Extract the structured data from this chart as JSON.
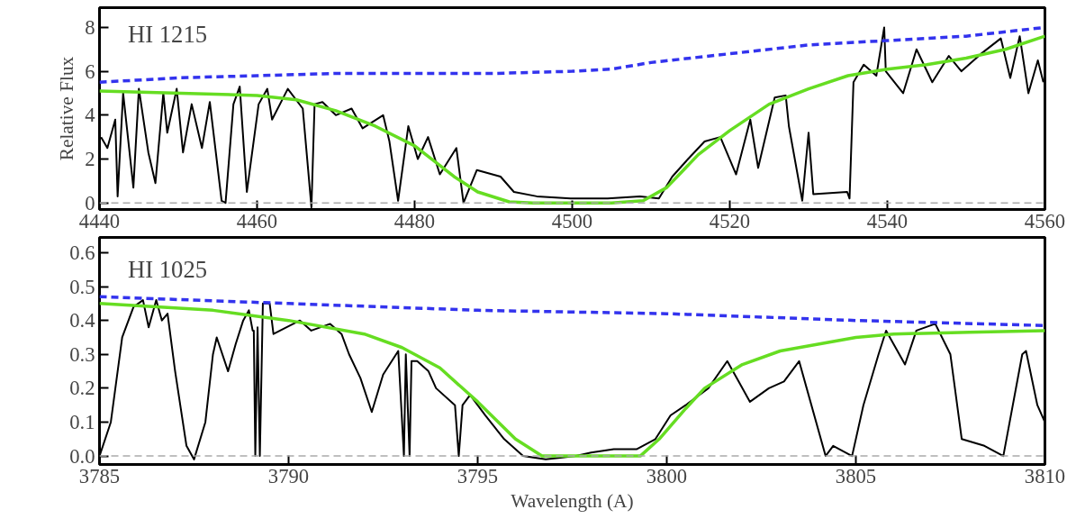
{
  "chart_data": [
    {
      "type": "line",
      "ylabel": "Relative Flux",
      "annotations": [
        "HI 1215"
      ],
      "xlim": [
        4440,
        4560
      ],
      "ylim": [
        -0.3,
        8.9
      ],
      "xticks": [
        4440,
        4460,
        4480,
        4500,
        4520,
        4540,
        4560
      ],
      "yticks": [
        0,
        2,
        4,
        6,
        8
      ],
      "grid": false,
      "ref_lines": [
        {
          "axis": "y",
          "value": 0,
          "color": "#aaaaaa",
          "line_style": "dashed"
        }
      ],
      "series": [
        {
          "color": "#000000",
          "line_style": "solid",
          "x": [
            4440.2,
            4441,
            4442,
            4442.3,
            4443,
            4444.3,
            4445,
            4446.2,
            4447.1,
            4448.1,
            4448.6,
            4449.8,
            4450.6,
            4451.7,
            4453,
            4454,
            4455.5,
            4456,
            4457,
            4457.8,
            4458.7,
            4460.2,
            4461.3,
            4461.9,
            4463.9,
            4465.8,
            4466.9,
            4467.3,
            4468.3,
            4470,
            4472,
            4473.4,
            4476,
            4476.8,
            4477.9,
            4479.2,
            4480.4,
            4481.7,
            4483.2,
            4485.3,
            4486.2,
            4487.9,
            4490.9,
            4492.6,
            4495.5,
            4499.8,
            4504.5,
            4508.6,
            4511,
            4512.7,
            4514.7,
            4516.8,
            4518.8,
            4520.8,
            4522.6,
            4523.6,
            4525.7,
            4527.1,
            4527.5,
            4529.2,
            4530,
            4530.6,
            4534.9,
            4535.2,
            4535.7,
            4537,
            4538.6,
            4539.6,
            4539.8,
            4542,
            4543.7,
            4545.7,
            4547.8,
            4549.4,
            4551.9,
            4554.4,
            4555.6,
            4556.8,
            4557.9,
            4559.1,
            4559.8
          ],
          "values": [
            3.0,
            2.5,
            3.8,
            0.3,
            5.0,
            0.7,
            5.2,
            2.3,
            0.9,
            5.0,
            3.2,
            5.2,
            2.3,
            4.5,
            2.5,
            4.6,
            0.1,
            0.0,
            4.5,
            5.3,
            0.5,
            4.5,
            5.2,
            3.8,
            5.2,
            4.3,
            -0.2,
            4.5,
            4.6,
            4.0,
            4.3,
            3.4,
            4.0,
            2.8,
            0.1,
            3.5,
            2.0,
            3.0,
            1.3,
            2.5,
            0.0,
            1.5,
            1.2,
            0.5,
            0.3,
            0.2,
            0.2,
            0.3,
            0.2,
            1.2,
            2.0,
            2.8,
            3.0,
            1.3,
            3.8,
            1.6,
            4.8,
            4.9,
            3.5,
            0.1,
            3.2,
            0.4,
            0.5,
            0.2,
            5.5,
            6.3,
            5.8,
            8.0,
            6.0,
            5.0,
            7.0,
            5.5,
            6.7,
            6.0,
            6.8,
            7.5,
            5.7,
            7.6,
            5.0,
            6.5,
            5.5
          ]
        },
        {
          "color": "#66dd22",
          "line_style": "solid",
          "x": [
            4440,
            4460,
            4465,
            4470,
            4475,
            4480,
            4485,
            4488,
            4492,
            4495,
            4505,
            4509,
            4512,
            4516,
            4520,
            4525,
            4530,
            4535,
            4540,
            4545,
            4550,
            4555,
            4560
          ],
          "values": [
            5.1,
            4.9,
            4.7,
            4.2,
            3.5,
            2.6,
            1.2,
            0.5,
            0.05,
            0.0,
            0.0,
            0.1,
            0.7,
            2.2,
            3.3,
            4.5,
            5.2,
            5.8,
            6.1,
            6.3,
            6.6,
            7.0,
            7.6
          ]
        },
        {
          "color": "#3333ee",
          "line_style": "dashed",
          "x": [
            4440,
            4450,
            4460,
            4470,
            4480,
            4490,
            4500,
            4505,
            4510,
            4520,
            4530,
            4540,
            4550,
            4560
          ],
          "values": [
            5.5,
            5.7,
            5.8,
            5.9,
            5.9,
            5.9,
            6.0,
            6.1,
            6.4,
            6.8,
            7.2,
            7.4,
            7.6,
            8.0
          ]
        }
      ]
    },
    {
      "type": "line",
      "xlabel": "Wavelength (A)",
      "annotations": [
        "HI 1025"
      ],
      "xlim": [
        3785,
        3810
      ],
      "ylim": [
        -0.025,
        0.645
      ],
      "xticks": [
        3785,
        3790,
        3795,
        3800,
        3805,
        3810
      ],
      "yticks": [
        {
          "value": 0,
          "label": "0.0"
        },
        0.1,
        0.2,
        0.3,
        0.4,
        0.5,
        0.6
      ],
      "grid": false,
      "ref_lines": [
        {
          "axis": "y",
          "value": 0,
          "color": "#aaaaaa",
          "line_style": "dashed"
        }
      ],
      "series": [
        {
          "color": "#000000",
          "line_style": "solid",
          "x": [
            3785.0,
            3785.3,
            3785.6,
            3785.9,
            3786.15,
            3786.3,
            3786.5,
            3786.65,
            3786.8,
            3787.0,
            3787.3,
            3787.5,
            3787.8,
            3788.0,
            3788.1,
            3788.4,
            3788.6,
            3788.8,
            3788.95,
            3789.05,
            3789.08,
            3789.12,
            3789.18,
            3789.24,
            3789.32,
            3789.5,
            3789.6,
            3790.3,
            3790.6,
            3791.1,
            3791.4,
            3791.6,
            3791.9,
            3792.2,
            3792.5,
            3792.9,
            3793.05,
            3793.1,
            3793.2,
            3793.25,
            3793.4,
            3793.7,
            3793.9,
            3794.4,
            3794.5,
            3794.6,
            3794.8,
            3795.2,
            3795.7,
            3796.2,
            3796.8,
            3797.6,
            3798.0,
            3798.6,
            3799.2,
            3799.7,
            3800.1,
            3800.5,
            3801.1,
            3801.6,
            3801.9,
            3802.2,
            3802.7,
            3803.1,
            3803.5,
            3803.7,
            3804.2,
            3804.4,
            3804.9,
            3805.2,
            3805.6,
            3805.8,
            3806.1,
            3806.3,
            3806.6,
            3807.1,
            3807.5,
            3807.8,
            3808.4,
            3808.9,
            3809.4,
            3809.5,
            3809.8,
            3810.0
          ],
          "values": [
            0.0,
            0.1,
            0.35,
            0.44,
            0.46,
            0.38,
            0.46,
            0.4,
            0.42,
            0.25,
            0.03,
            -0.01,
            0.1,
            0.3,
            0.35,
            0.25,
            0.33,
            0.4,
            0.43,
            0.37,
            0.37,
            0.0,
            0.38,
            0.0,
            0.45,
            0.45,
            0.36,
            0.4,
            0.37,
            0.39,
            0.36,
            0.3,
            0.23,
            0.13,
            0.24,
            0.31,
            0.0,
            0.3,
            0.0,
            0.28,
            0.28,
            0.25,
            0.2,
            0.15,
            0.0,
            0.15,
            0.18,
            0.12,
            0.05,
            0.0,
            -0.01,
            0.0,
            0.01,
            0.02,
            0.02,
            0.05,
            0.12,
            0.15,
            0.2,
            0.28,
            0.22,
            0.16,
            0.2,
            0.22,
            0.28,
            0.2,
            0.0,
            0.03,
            0.0,
            0.15,
            0.3,
            0.37,
            0.31,
            0.27,
            0.37,
            0.39,
            0.3,
            0.05,
            0.03,
            0.0,
            0.3,
            0.31,
            0.15,
            0.1
          ]
        },
        {
          "color": "#66dd22",
          "line_style": "solid",
          "x": [
            3785,
            3788,
            3790,
            3792,
            3793,
            3794,
            3795,
            3796,
            3796.7,
            3799.3,
            3799.8,
            3800.5,
            3801,
            3802,
            3803,
            3804,
            3805,
            3806,
            3808,
            3810
          ],
          "values": [
            0.45,
            0.43,
            0.4,
            0.36,
            0.32,
            0.26,
            0.16,
            0.05,
            0.0,
            0.0,
            0.05,
            0.14,
            0.2,
            0.27,
            0.31,
            0.33,
            0.35,
            0.36,
            0.365,
            0.37
          ]
        },
        {
          "color": "#3333ee",
          "line_style": "dashed",
          "x": [
            3785,
            3790,
            3795,
            3800,
            3805,
            3810
          ],
          "values": [
            0.47,
            0.45,
            0.43,
            0.42,
            0.4,
            0.385
          ]
        }
      ]
    }
  ]
}
